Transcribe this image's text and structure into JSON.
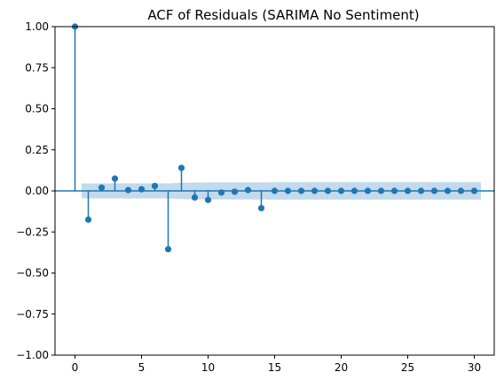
{
  "chart_data": {
    "type": "stem",
    "title": "ACF of Residuals (SARIMA No Sentiment)",
    "xlabel": "",
    "ylabel": "",
    "xlim": [
      -1.5,
      31.5
    ],
    "ylim": [
      -1.0,
      1.0
    ],
    "xticks": [
      0,
      5,
      10,
      15,
      20,
      25,
      30
    ],
    "yticks": [
      -1.0,
      -0.75,
      -0.5,
      -0.25,
      0.0,
      0.25,
      0.5,
      0.75,
      1.0
    ],
    "ytick_labels": [
      "−1.00",
      "−0.75",
      "−0.50",
      "−0.25",
      "0.00",
      "0.25",
      "0.50",
      "0.75",
      "1.00"
    ],
    "lags": [
      0,
      1,
      2,
      3,
      4,
      5,
      6,
      7,
      8,
      9,
      10,
      11,
      12,
      13,
      14,
      15,
      16,
      17,
      18,
      19,
      20,
      21,
      22,
      23,
      24,
      25,
      26,
      27,
      28,
      29,
      30
    ],
    "values": [
      1.0,
      -0.175,
      0.02,
      0.075,
      0.005,
      0.01,
      0.03,
      -0.355,
      0.14,
      -0.04,
      -0.055,
      -0.01,
      -0.005,
      0.005,
      -0.105,
      0.0,
      0.0,
      0.0,
      0.0,
      0.0,
      0.0,
      0.0,
      0.0,
      0.0,
      0.0,
      0.0,
      0.0,
      0.0,
      0.0,
      0.0,
      0.0
    ],
    "confidence_band": {
      "lags": [
        0.5,
        1,
        2,
        3,
        4,
        5,
        6,
        7,
        8,
        9,
        10,
        11,
        12,
        13,
        14,
        15,
        16,
        17,
        18,
        19,
        20,
        21,
        22,
        23,
        24,
        25,
        26,
        27,
        28,
        29,
        30,
        30.5
      ],
      "upper": [
        0.045,
        0.045,
        0.046,
        0.046,
        0.046,
        0.046,
        0.046,
        0.046,
        0.05,
        0.051,
        0.052,
        0.052,
        0.052,
        0.052,
        0.052,
        0.053,
        0.053,
        0.053,
        0.053,
        0.053,
        0.053,
        0.053,
        0.053,
        0.053,
        0.053,
        0.053,
        0.053,
        0.053,
        0.053,
        0.053,
        0.053,
        0.053
      ],
      "lower": [
        -0.045,
        -0.045,
        -0.046,
        -0.046,
        -0.046,
        -0.046,
        -0.046,
        -0.046,
        -0.05,
        -0.051,
        -0.052,
        -0.052,
        -0.052,
        -0.052,
        -0.052,
        -0.053,
        -0.053,
        -0.053,
        -0.053,
        -0.053,
        -0.053,
        -0.053,
        -0.053,
        -0.053,
        -0.053,
        -0.053,
        -0.053,
        -0.053,
        -0.053,
        -0.053,
        -0.053,
        -0.053
      ]
    },
    "colors": {
      "series": "#1f77b4",
      "band": "#c3d9ec",
      "axis": "#000000"
    },
    "grid": false,
    "legend": "none"
  }
}
